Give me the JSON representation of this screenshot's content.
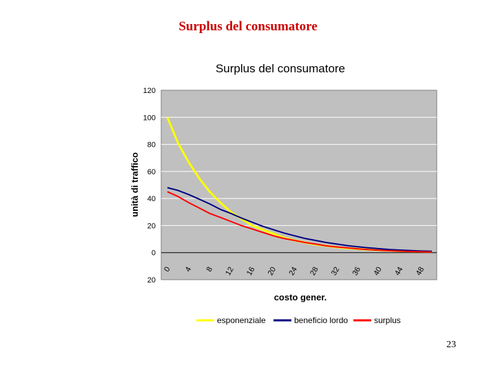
{
  "slide": {
    "title": "Surplus del consumatore",
    "page_number": "23"
  },
  "chart_data": {
    "type": "line",
    "title": "Surplus del consumatore",
    "xlabel": "costo gener.",
    "ylabel": "unità di traffico",
    "x": [
      0,
      2,
      4,
      6,
      8,
      10,
      12,
      14,
      16,
      18,
      20,
      22,
      24,
      26,
      28,
      30,
      32,
      34,
      36,
      38,
      40,
      42,
      44,
      46,
      48,
      50
    ],
    "x_tick_labels": [
      "0",
      "4",
      "8",
      "12",
      "16",
      "20",
      "24",
      "28",
      "32",
      "36",
      "40",
      "44",
      "48"
    ],
    "x_tick_values": [
      0,
      4,
      8,
      12,
      16,
      20,
      24,
      28,
      32,
      36,
      40,
      44,
      48
    ],
    "y_tick_labels": [
      "120",
      "100",
      "80",
      "60",
      "40",
      "20",
      "0",
      "20"
    ],
    "y_tick_values": [
      120,
      100,
      80,
      60,
      40,
      20,
      0,
      -20
    ],
    "ylim": [
      -20,
      120
    ],
    "xlim": [
      0,
      50
    ],
    "grid": true,
    "legend_position": "bottom",
    "series": [
      {
        "name": "esponenziale",
        "color": "#ffff00",
        "values": [
          100,
          81,
          67,
          55,
          45,
          37,
          30,
          25,
          20,
          17,
          14,
          11,
          9,
          7.5,
          6,
          5,
          4,
          3.3,
          2.7,
          2.2,
          1.8,
          1.5,
          1.2,
          1,
          0.8,
          0.7
        ]
      },
      {
        "name": "beneficio lordo",
        "color": "#000080",
        "values": [
          48,
          46,
          43,
          39.5,
          36,
          32,
          29,
          25.5,
          22.5,
          19.5,
          17,
          14.5,
          12.5,
          10.5,
          9,
          7.5,
          6.3,
          5.2,
          4.3,
          3.5,
          2.9,
          2.3,
          1.9,
          1.5,
          1.2,
          1
        ]
      },
      {
        "name": "surplus",
        "color": "#ff0000",
        "values": [
          45,
          41.5,
          37,
          33,
          29,
          26,
          23,
          20,
          17.5,
          15,
          12.5,
          10.5,
          9,
          7.5,
          6.3,
          5,
          4.2,
          3.5,
          2.8,
          2.2,
          1.8,
          1.4,
          1.1,
          0.8,
          0.6,
          0.4
        ]
      }
    ]
  }
}
